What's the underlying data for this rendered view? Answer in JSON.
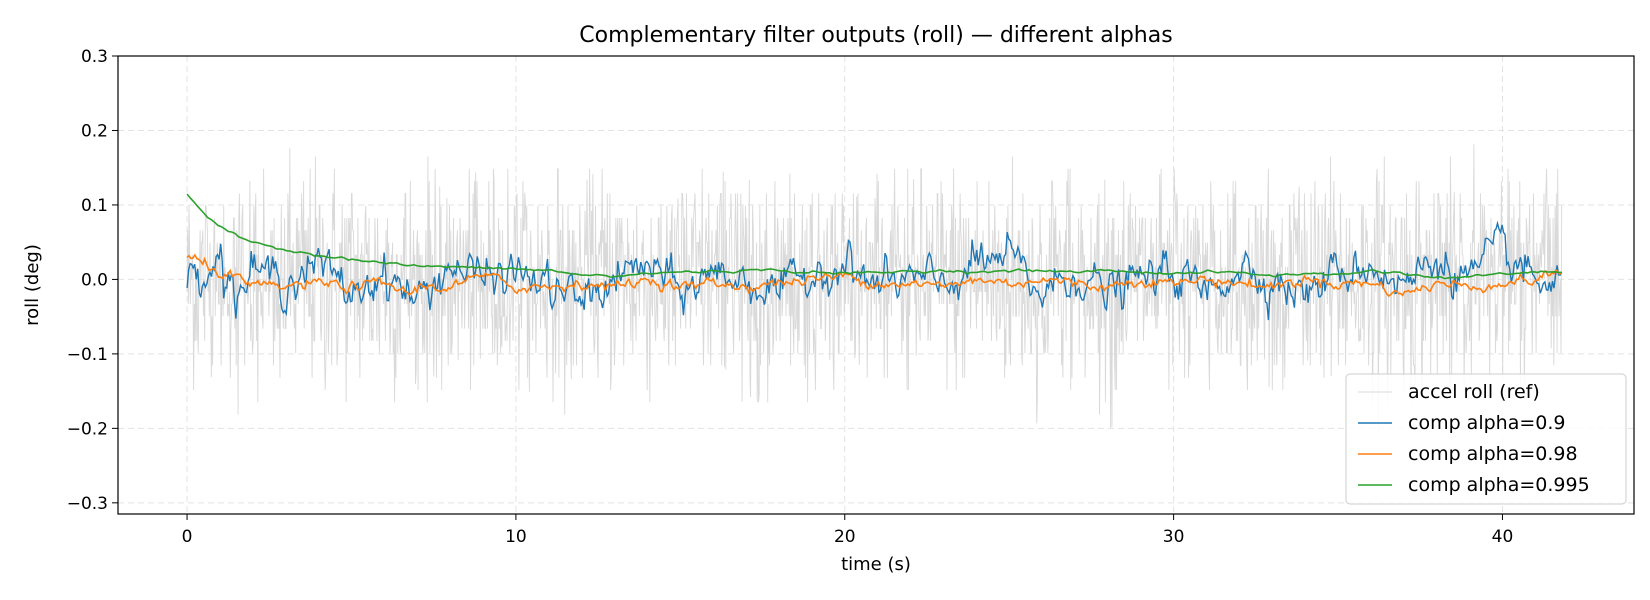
{
  "chart_data": {
    "type": "line",
    "title": "Complementary filter outputs (roll) — different alphas",
    "xlabel": "time (s)",
    "ylabel": "roll (deg)",
    "xlim": [
      -2.1,
      44.0
    ],
    "ylim": [
      -0.315,
      0.3
    ],
    "xticks": [
      0,
      10,
      20,
      30,
      40
    ],
    "yticks": [
      0.3,
      0.2,
      0.1,
      0.0,
      -0.1,
      -0.2,
      -0.3
    ],
    "xtick_labels": [
      "0",
      "10",
      "20",
      "30",
      "40"
    ],
    "ytick_labels": [
      "0.3",
      "0.2",
      "0.1",
      "0.0",
      "−0.1",
      "−0.2",
      "−0.3"
    ],
    "grid": true,
    "legend_position": "lower-right",
    "x_range": [
      0,
      41.8
    ],
    "series": [
      {
        "name": "accel roll (ref)",
        "color": "#d9d9d9",
        "description_values": {
          "x": [
            0,
            2,
            4,
            6,
            8,
            10,
            12,
            14,
            16,
            18,
            20,
            22,
            24,
            26,
            28,
            30,
            32,
            34,
            36,
            38,
            40,
            41.8
          ],
          "typical_min": [
            -0.15,
            -0.2,
            -0.15,
            -0.2,
            -0.15,
            -0.15,
            -0.2,
            -0.2,
            -0.15,
            -0.2,
            -0.15,
            -0.15,
            -0.2,
            -0.2,
            -0.25,
            -0.15,
            -0.15,
            -0.15,
            -0.2,
            -0.2,
            -0.15,
            -0.15
          ],
          "typical_max": [
            0.15,
            0.15,
            0.2,
            0.2,
            0.15,
            0.15,
            0.15,
            0.15,
            0.15,
            0.15,
            0.15,
            0.15,
            0.2,
            0.15,
            0.15,
            0.15,
            0.15,
            0.15,
            0.2,
            0.15,
            0.25,
            0.15
          ]
        }
      },
      {
        "name": "comp alpha=0.9",
        "color": "#1f77b4",
        "x": [
          0,
          0.5,
          1,
          1.5,
          2,
          3,
          4,
          5,
          6,
          7,
          8,
          9,
          10,
          11,
          12,
          13,
          14,
          15,
          16,
          17,
          18,
          19,
          20,
          21,
          22,
          23,
          24,
          25,
          26,
          27,
          28,
          29,
          30,
          31,
          32,
          33,
          34,
          35,
          36,
          37,
          38,
          39,
          40,
          41,
          41.8
        ],
        "y": [
          0.0,
          0.02,
          0.03,
          -0.02,
          0.01,
          0.0,
          0.02,
          -0.02,
          0.01,
          -0.03,
          0.02,
          0.0,
          0.01,
          -0.01,
          -0.03,
          0.0,
          0.02,
          -0.02,
          0.01,
          0.0,
          -0.02,
          0.01,
          0.02,
          -0.01,
          0.0,
          -0.01,
          0.02,
          0.03,
          -0.02,
          0.01,
          -0.02,
          0.0,
          0.01,
          -0.02,
          0.02,
          0.0,
          -0.02,
          0.01,
          0.02,
          -0.01,
          0.03,
          0.0,
          0.04,
          -0.01,
          0.0
        ]
      },
      {
        "name": "comp alpha=0.98",
        "color": "#ff7f0e",
        "x": [
          0,
          0.5,
          1,
          1.5,
          2,
          3,
          4,
          5,
          6,
          6.8,
          7,
          8,
          9,
          10,
          11,
          12,
          13,
          14,
          15,
          16,
          17,
          18,
          19,
          20,
          21,
          22,
          23,
          24,
          25,
          26,
          27,
          28,
          29,
          30,
          31,
          32,
          33,
          34,
          35,
          36,
          37,
          38,
          39,
          40,
          41,
          41.8
        ],
        "y": [
          0.03,
          0.02,
          0.01,
          0.0,
          -0.01,
          -0.01,
          -0.005,
          -0.01,
          -0.005,
          -0.02,
          -0.01,
          -0.01,
          0.005,
          -0.01,
          -0.01,
          -0.005,
          -0.01,
          0.0,
          -0.01,
          -0.005,
          -0.01,
          -0.005,
          0.0,
          0.005,
          -0.005,
          -0.005,
          -0.01,
          0.0,
          -0.005,
          0.0,
          -0.005,
          -0.01,
          0.0,
          -0.005,
          0.0,
          -0.005,
          -0.01,
          0.0,
          -0.005,
          -0.005,
          -0.02,
          -0.005,
          -0.01,
          -0.005,
          0.0,
          0.01
        ]
      },
      {
        "name": "comp alpha=0.995",
        "color": "#2ca02c",
        "x": [
          0,
          0.3,
          0.6,
          1,
          1.5,
          2,
          2.5,
          3,
          4,
          5,
          6,
          7,
          8,
          9,
          10,
          11,
          12,
          13,
          14,
          15,
          16,
          17,
          18,
          19,
          20,
          21,
          22,
          23,
          24,
          25,
          26,
          27,
          28,
          29,
          30,
          31,
          32,
          33,
          34,
          35,
          36,
          37,
          38,
          39,
          40,
          41,
          41.8
        ],
        "y": [
          0.115,
          0.1,
          0.085,
          0.07,
          0.058,
          0.05,
          0.045,
          0.04,
          0.033,
          0.027,
          0.022,
          0.018,
          0.017,
          0.015,
          0.014,
          0.012,
          0.006,
          0.004,
          0.008,
          0.01,
          0.011,
          0.012,
          0.012,
          0.01,
          0.008,
          0.009,
          0.011,
          0.012,
          0.01,
          0.011,
          0.012,
          0.01,
          0.012,
          0.01,
          0.008,
          0.01,
          0.009,
          0.005,
          0.008,
          0.006,
          0.012,
          0.008,
          0.002,
          0.004,
          0.007,
          0.01,
          0.01
        ]
      }
    ]
  }
}
